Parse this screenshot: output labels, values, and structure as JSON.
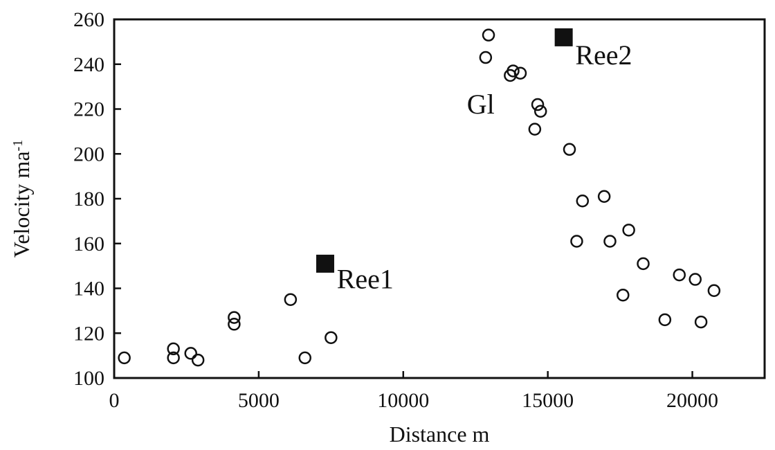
{
  "chart_data": {
    "type": "scatter",
    "title": "",
    "xlabel": "Distance m",
    "ylabel": "Velocity ma-1",
    "ylabel_superscript": "-1",
    "ylabel_main": "Velocity ma",
    "xlim": [
      0,
      22500
    ],
    "ylim": [
      100,
      260
    ],
    "x_ticks": [
      0,
      5000,
      10000,
      15000,
      20000
    ],
    "x_tick_labels": [
      "0",
      "5000",
      "10000",
      "15000",
      "20000"
    ],
    "y_ticks": [
      100,
      120,
      140,
      160,
      180,
      200,
      220,
      240,
      260
    ],
    "y_tick_labels": [
      "100",
      "120",
      "140",
      "160",
      "180",
      "200",
      "220",
      "240",
      "260"
    ],
    "grid": false,
    "series": [
      {
        "marker": "open-circle",
        "points": [
          {
            "x": 350,
            "y": 109
          },
          {
            "x": 2050,
            "y": 113
          },
          {
            "x": 2050,
            "y": 109
          },
          {
            "x": 2650,
            "y": 111
          },
          {
            "x": 2900,
            "y": 108
          },
          {
            "x": 4150,
            "y": 127
          },
          {
            "x": 4150,
            "y": 124
          },
          {
            "x": 6100,
            "y": 135
          },
          {
            "x": 6600,
            "y": 109
          },
          {
            "x": 7500,
            "y": 118
          },
          {
            "x": 12850,
            "y": 243
          },
          {
            "x": 12950,
            "y": 253
          },
          {
            "x": 13700,
            "y": 235
          },
          {
            "x": 13800,
            "y": 237
          },
          {
            "x": 14050,
            "y": 236
          },
          {
            "x": 14550,
            "y": 211
          },
          {
            "x": 14650,
            "y": 222
          },
          {
            "x": 14750,
            "y": 219
          },
          {
            "x": 15750,
            "y": 202
          },
          {
            "x": 16000,
            "y": 161
          },
          {
            "x": 16200,
            "y": 179
          },
          {
            "x": 16950,
            "y": 181
          },
          {
            "x": 17150,
            "y": 161
          },
          {
            "x": 17600,
            "y": 137
          },
          {
            "x": 17800,
            "y": 166
          },
          {
            "x": 18300,
            "y": 151
          },
          {
            "x": 19050,
            "y": 126
          },
          {
            "x": 19550,
            "y": 146
          },
          {
            "x": 20100,
            "y": 144
          },
          {
            "x": 20300,
            "y": 125
          },
          {
            "x": 20750,
            "y": 139
          }
        ]
      },
      {
        "marker": "filled-square",
        "points": [
          {
            "x": 7300,
            "y": 151,
            "label": "Ree1"
          },
          {
            "x": 15550,
            "y": 252,
            "label": "Ree2"
          }
        ]
      }
    ],
    "annotations": [
      {
        "text": "Gl",
        "x": 12200,
        "y": 218
      },
      {
        "text": "Ree1",
        "x": 7700,
        "y": 140
      },
      {
        "text": "Ree2",
        "x": 15950,
        "y": 240
      }
    ]
  }
}
